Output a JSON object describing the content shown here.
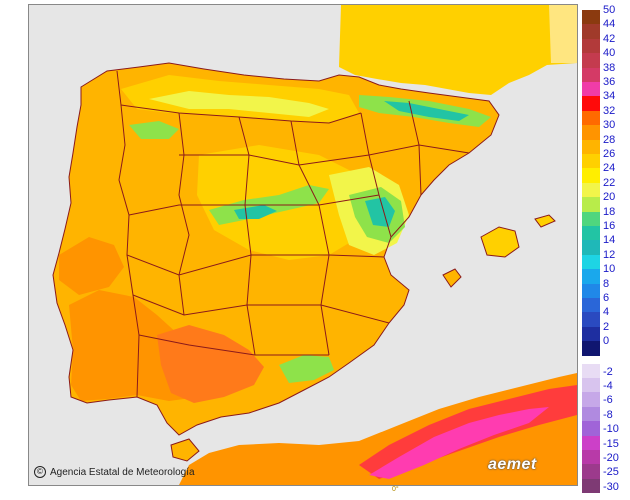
{
  "credit": {
    "text": "Agencia Estatal de Meteorología",
    "icon": "copyright-icon"
  },
  "brand": {
    "logo_text": "aemet"
  },
  "scale_mark": "0°",
  "legend": {
    "positive_entries": [
      {
        "label": "50",
        "color": "#8b3a0f"
      },
      {
        "label": "44",
        "color": "#a03a2a"
      },
      {
        "label": "42",
        "color": "#b23a3a"
      },
      {
        "label": "40",
        "color": "#c43b4e"
      },
      {
        "label": "38",
        "color": "#d43a66"
      },
      {
        "label": "36",
        "color": "#f03ca8"
      },
      {
        "label": "34",
        "color": "#ff0a0a"
      },
      {
        "label": "32",
        "color": "#ff6a00"
      },
      {
        "label": "30",
        "color": "#ff9400"
      },
      {
        "label": "28",
        "color": "#ffb400"
      },
      {
        "label": "26",
        "color": "#ffd000"
      },
      {
        "label": "24",
        "color": "#ffee00"
      },
      {
        "label": "22",
        "color": "#f2f54a"
      },
      {
        "label": "20",
        "color": "#b8ec4a"
      },
      {
        "label": "18",
        "color": "#4fd67e"
      },
      {
        "label": "16",
        "color": "#22c4a4"
      },
      {
        "label": "14",
        "color": "#1fb8b8"
      },
      {
        "label": "12",
        "color": "#1ed4e4"
      },
      {
        "label": "10",
        "color": "#1aa8ec"
      },
      {
        "label": "8",
        "color": "#2088e8"
      },
      {
        "label": "6",
        "color": "#2a66d8"
      },
      {
        "label": "4",
        "color": "#2a4ac0"
      },
      {
        "label": "2",
        "color": "#1e2ea0"
      },
      {
        "label": "0",
        "color": "#101670"
      }
    ],
    "negative_entries": [
      {
        "label": "-2",
        "color": "#e8dcf4"
      },
      {
        "label": "-4",
        "color": "#d8c4ee"
      },
      {
        "label": "-6",
        "color": "#c6a8e8"
      },
      {
        "label": "-8",
        "color": "#b08ae0"
      },
      {
        "label": "-10",
        "color": "#a064d8"
      },
      {
        "label": "-15",
        "color": "#cc40c8"
      },
      {
        "label": "-20",
        "color": "#b83aa8"
      },
      {
        "label": "-25",
        "color": "#9c3a8c"
      },
      {
        "label": "-30",
        "color": "#7e3a74"
      }
    ]
  },
  "colors": {
    "sea": "#e6e6e6",
    "land_base": "#ffb400",
    "warm": "#ff9400",
    "hot": "#ff7a1a",
    "mild": "#ffd000",
    "cool": "#f2f54a",
    "green": "#8ee24a",
    "teal": "#22c4a4",
    "border": "#8b1a1a",
    "africa_hot": "#ff3cb0",
    "france": "#ffe680"
  }
}
